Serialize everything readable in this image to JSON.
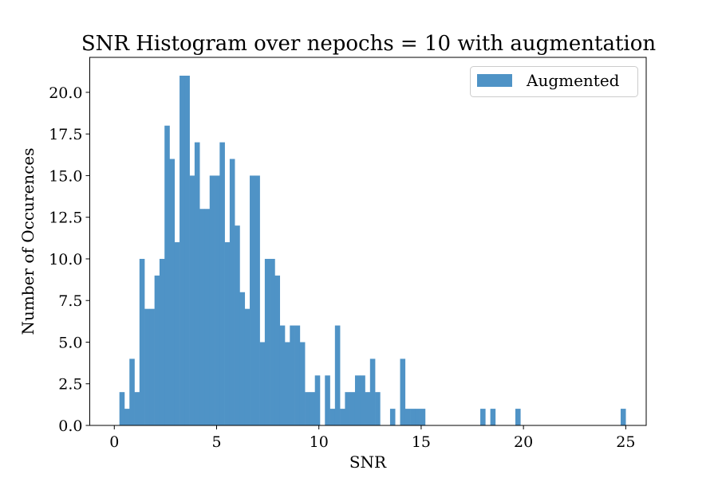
{
  "chart_data": {
    "type": "bar",
    "title": "SNR Histogram over nepochs = 10 with augmentation",
    "xlabel": "SNR",
    "ylabel": "Number of Occurences",
    "xlim": [
      -1.2,
      26.0
    ],
    "ylim": [
      0,
      22.1
    ],
    "xticks": [
      0,
      5,
      10,
      15,
      20,
      25
    ],
    "yticks": [
      0.0,
      2.5,
      5.0,
      7.5,
      10.0,
      12.5,
      15.0,
      17.5,
      20.0
    ],
    "xtick_labels": [
      "0",
      "5",
      "10",
      "15",
      "20",
      "25"
    ],
    "ytick_labels": [
      "0.0",
      "2.5",
      "5.0",
      "7.5",
      "10.0",
      "12.5",
      "15.0",
      "17.5",
      "20.0"
    ],
    "grid": false,
    "legend": {
      "position": "top-right",
      "entries": [
        "Augmented"
      ]
    },
    "bin_start": 0.25,
    "bin_width": 0.245,
    "series": [
      {
        "name": "Augmented",
        "color": "#4f93c6",
        "values": [
          2,
          1,
          4,
          2,
          10,
          7,
          7,
          9,
          10,
          18,
          16,
          11,
          21,
          21,
          15,
          17,
          13,
          13,
          15,
          15,
          17,
          11,
          16,
          12,
          8,
          7,
          15,
          15,
          5,
          10,
          10,
          9,
          6,
          5,
          6,
          6,
          5,
          2,
          2,
          3,
          0,
          3,
          1,
          6,
          1,
          2,
          2,
          3,
          3,
          2,
          4,
          2,
          0,
          0,
          1,
          0,
          4,
          1,
          1,
          1,
          1,
          0,
          0,
          0,
          0,
          0,
          0,
          0,
          0,
          0,
          0,
          0,
          1,
          0,
          1,
          0,
          0,
          0,
          0,
          1,
          0,
          0,
          0,
          0,
          0,
          0,
          0,
          0,
          0,
          0,
          0,
          0,
          0,
          0,
          0,
          0,
          0,
          0,
          0,
          0,
          1
        ]
      }
    ]
  }
}
